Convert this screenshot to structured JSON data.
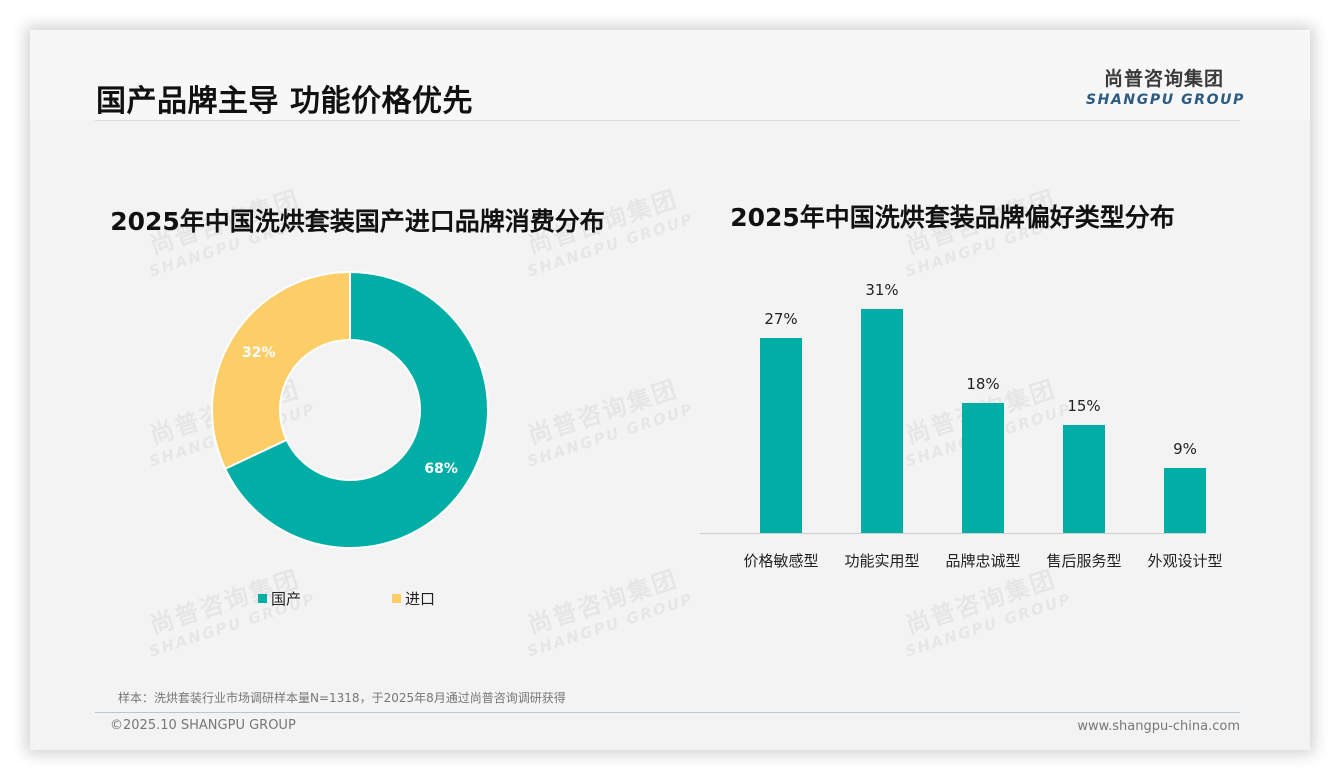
{
  "header": {
    "title": "国产品牌主导 功能价格优先",
    "logo_cn": "尚普咨询集团",
    "logo_en": "SHANGPU GROUP"
  },
  "watermark": {
    "cn": "尚普咨询集团",
    "en": "SHANGPU GROUP"
  },
  "colors": {
    "teal": "#00aea6",
    "yellow": "#fdce68",
    "logo_blue": "#2b5a82"
  },
  "left_chart": {
    "title": "2025年中国洗烘套装国产进口品牌消费分布",
    "legend": [
      {
        "label": "国产",
        "color": "#00aea6"
      },
      {
        "label": "进口",
        "color": "#fdce68"
      }
    ],
    "slices": [
      {
        "label": "国产",
        "value": 68,
        "display": "68%",
        "color": "#00aea6"
      },
      {
        "label": "进口",
        "value": 32,
        "display": "32%",
        "color": "#fdce68"
      }
    ]
  },
  "right_chart": {
    "title": "2025年中国洗烘套装品牌偏好类型分布",
    "bars": [
      {
        "category": "价格敏感型",
        "value": 27,
        "display": "27%"
      },
      {
        "category": "功能实用型",
        "value": 31,
        "display": "31%"
      },
      {
        "category": "品牌忠诚型",
        "value": 18,
        "display": "18%"
      },
      {
        "category": "售后服务型",
        "value": 15,
        "display": "15%"
      },
      {
        "category": "外观设计型",
        "value": 9,
        "display": "9%"
      }
    ]
  },
  "footer": {
    "note": "样本：洗烘套装行业市场调研样本量N=1318，于2025年8月通过尚普咨询调研获得",
    "copyright": "©2025.10 SHANGPU GROUP",
    "website": "www.shangpu-china.com"
  },
  "chart_data": [
    {
      "type": "pie",
      "title": "2025年中国洗烘套装国产进口品牌消费分布",
      "categories": [
        "国产",
        "进口"
      ],
      "values": [
        68,
        32
      ],
      "unit": "%",
      "donut": true,
      "legend_position": "bottom",
      "colors": [
        "#00aea6",
        "#fdce68"
      ]
    },
    {
      "type": "bar",
      "title": "2025年中国洗烘套装品牌偏好类型分布",
      "categories": [
        "价格敏感型",
        "功能实用型",
        "品牌忠诚型",
        "售后服务型",
        "外观设计型"
      ],
      "values": [
        27,
        31,
        18,
        15,
        9
      ],
      "unit": "%",
      "xlabel": "",
      "ylabel": "",
      "ylim": [
        0,
        31
      ],
      "grid": false,
      "data_labels": true,
      "color": "#00aea6"
    }
  ]
}
